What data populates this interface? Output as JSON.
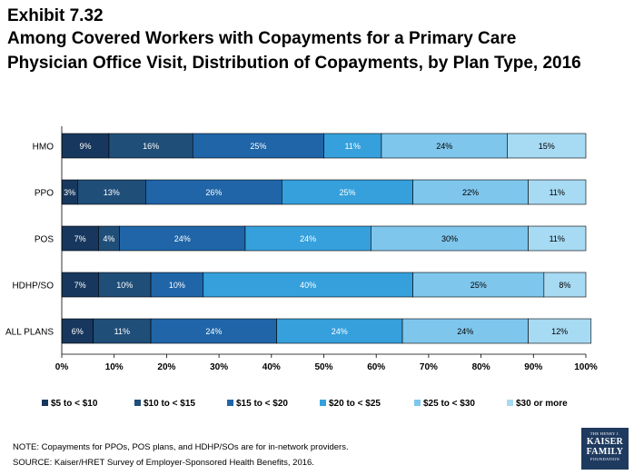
{
  "header": {
    "exhibit": "Exhibit 7.32",
    "title_line1": "Among Covered Workers with Copayments for a Primary Care",
    "title_line2": "Physician Office Visit, Distribution of Copayments, by Plan Type, 2016"
  },
  "chart_data": {
    "type": "bar",
    "orientation": "horizontal",
    "stacked": true,
    "categories": [
      "HMO",
      "PPO",
      "POS",
      "HDHP/SO",
      "ALL PLANS"
    ],
    "series": [
      {
        "name": "$5 to < $10",
        "color": "#17375e",
        "values": [
          9,
          3,
          7,
          7,
          6
        ],
        "labels": [
          "9%",
          "3%",
          "7%",
          "7%",
          "6%"
        ]
      },
      {
        "name": "$10 to < $15",
        "color": "#1f4e79",
        "values": [
          16,
          13,
          4,
          10,
          11
        ],
        "labels": [
          "16%",
          "13%",
          "4%",
          "10%",
          "11%"
        ]
      },
      {
        "name": "$15 to < $20",
        "color": "#1f65a8",
        "values": [
          25,
          26,
          24,
          10,
          24
        ],
        "labels": [
          "25%",
          "26%",
          "24%",
          "10%",
          "24%"
        ]
      },
      {
        "name": "$20 to < $25",
        "color": "#35a0dc",
        "values": [
          11,
          25,
          24,
          40,
          24
        ],
        "labels": [
          "11%",
          "25%",
          "24%",
          "40%",
          "24%"
        ]
      },
      {
        "name": "$25 to < $30",
        "color": "#7fc6ec",
        "values": [
          24,
          22,
          30,
          25,
          24
        ],
        "labels": [
          "24%",
          "22%",
          "30%",
          "25%",
          "24%"
        ]
      },
      {
        "name": "$30 or more",
        "color": "#a7daf3",
        "values": [
          15,
          11,
          11,
          8,
          12
        ],
        "labels": [
          "15%",
          "11%",
          "11%",
          "8%",
          "12%"
        ]
      }
    ],
    "xlim": [
      0,
      100
    ],
    "xticks": [
      "0%",
      "10%",
      "20%",
      "30%",
      "40%",
      "50%",
      "60%",
      "70%",
      "80%",
      "90%",
      "100%"
    ],
    "legend_position": "bottom",
    "grid": false
  },
  "notes": {
    "note": "NOTE:  Copayments for PPOs, POS plans, and HDHP/SOs are for in-network providers.",
    "source": "SOURCE:  Kaiser/HRET Survey of Employer-Sponsored Health Benefits, 2016."
  },
  "logo": {
    "top": "THE HENRY J.",
    "line1": "KAISER",
    "line2": "FAMILY",
    "bottom": "FOUNDATION"
  }
}
